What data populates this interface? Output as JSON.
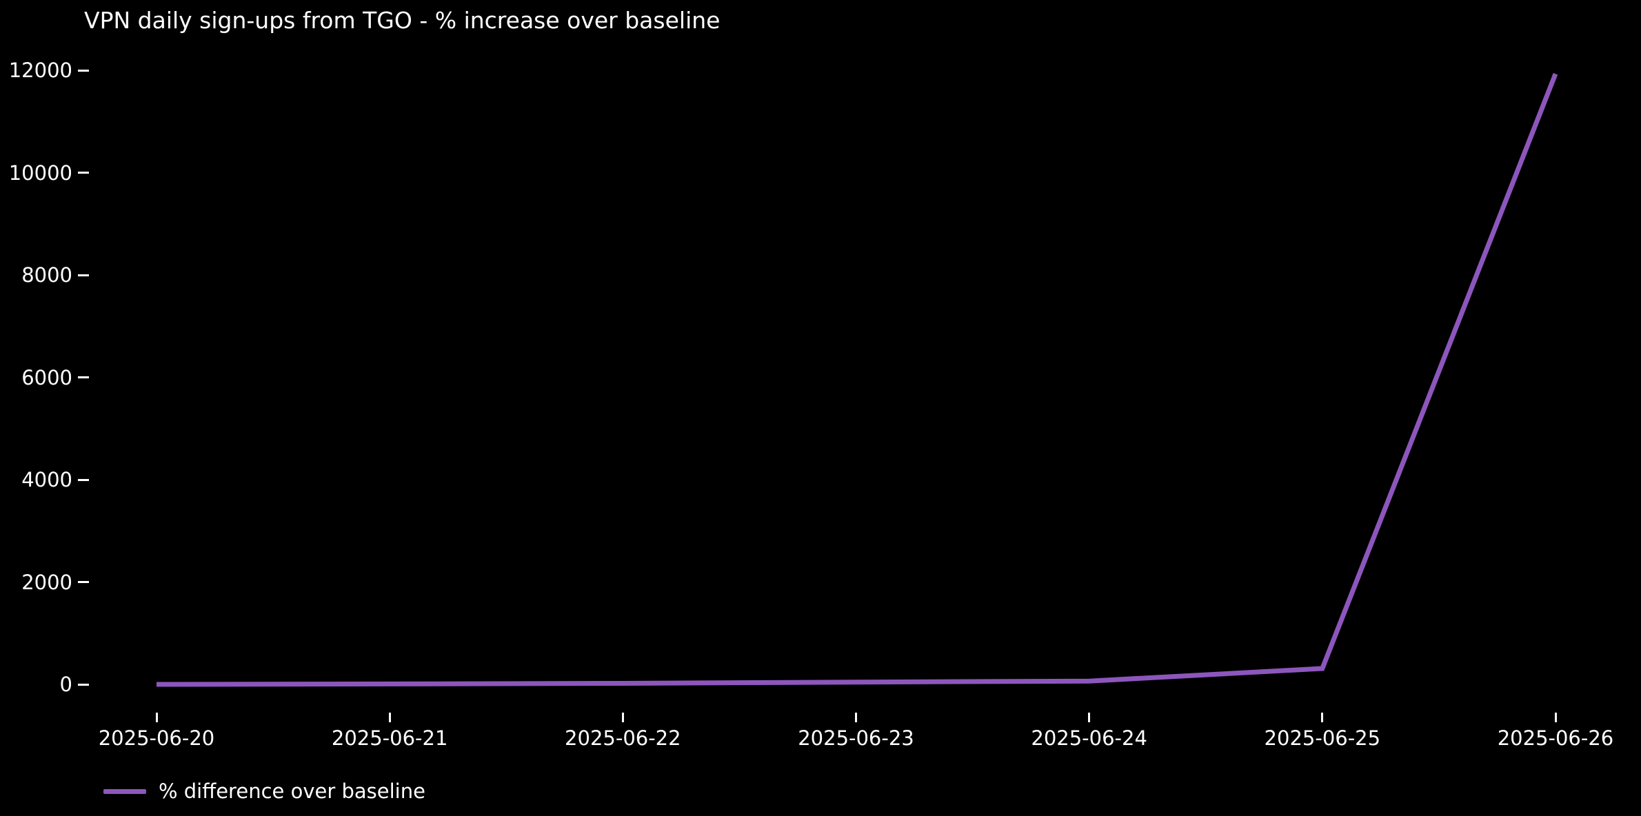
{
  "chart_data": {
    "type": "line",
    "title": "VPN daily sign-ups from TGO - % increase over baseline",
    "x": [
      "2025-06-20",
      "2025-06-21",
      "2025-06-22",
      "2025-06-23",
      "2025-06-24",
      "2025-06-25",
      "2025-06-26"
    ],
    "series": [
      {
        "name": "% difference over baseline",
        "color": "#8d56bd",
        "values": [
          0,
          8,
          20,
          45,
          65,
          310,
          11930
        ]
      }
    ],
    "xlabel": "",
    "ylabel": "",
    "ylim": [
      0,
      12000
    ],
    "yticks": [
      0,
      2000,
      4000,
      6000,
      8000,
      10000,
      12000
    ],
    "grid": false,
    "legend_position": "lower-left",
    "background_color": "#000000",
    "text_color": "#ffffff"
  }
}
